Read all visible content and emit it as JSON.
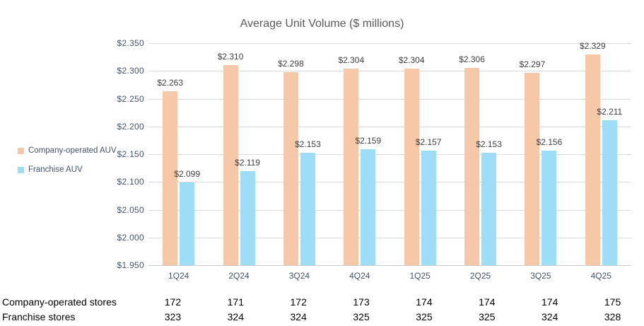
{
  "chart_data": {
    "type": "bar",
    "title": "Average Unit Volume ($ millions)",
    "categories": [
      "1Q24",
      "2Q24",
      "3Q24",
      "4Q24",
      "1Q25",
      "2Q25",
      "3Q25",
      "4Q25"
    ],
    "series": [
      {
        "name": "Company-operated AUV",
        "color": "#F6C8A8",
        "values": [
          2.263,
          2.31,
          2.298,
          2.304,
          2.304,
          2.306,
          2.297,
          2.329
        ],
        "labels": [
          "$2.263",
          "$2.310",
          "$2.298",
          "$2.304",
          "$2.304",
          "$2.306",
          "$2.297",
          "$2.329"
        ]
      },
      {
        "name": "Franchise AUV",
        "color": "#9EDDF8",
        "values": [
          2.099,
          2.119,
          2.153,
          2.159,
          2.157,
          2.153,
          2.156,
          2.211
        ],
        "labels": [
          "$2.099",
          "$2.119",
          "$2.153",
          "$2.159",
          "$2.157",
          "$2.153",
          "$2.156",
          "$2.211"
        ]
      }
    ],
    "ylim": [
      1.95,
      2.35
    ],
    "ytick_step": 0.05,
    "ytick_labels": [
      "$2.350",
      "$2.300",
      "$2.250",
      "$2.200",
      "$2.150",
      "$2.100",
      "$2.050",
      "$2.000",
      "$1.950"
    ],
    "grid": true,
    "legend_position": "left"
  },
  "table": {
    "rows": [
      {
        "label": "Company-operated stores",
        "values": [
          "172",
          "171",
          "172",
          "173",
          "174",
          "174",
          "174",
          "175"
        ]
      },
      {
        "label": "Franchise stores",
        "values": [
          "323",
          "324",
          "324",
          "325",
          "325",
          "325",
          "324",
          "328"
        ]
      }
    ]
  },
  "colors": {
    "company_bar": "#F6C8A8",
    "franchise_bar": "#9EDDF8",
    "gridline": "#d9d9d9",
    "title_text": "#595959",
    "axis_text": "#44546A",
    "data_label_text": "#404040",
    "table_text": "#000000"
  }
}
